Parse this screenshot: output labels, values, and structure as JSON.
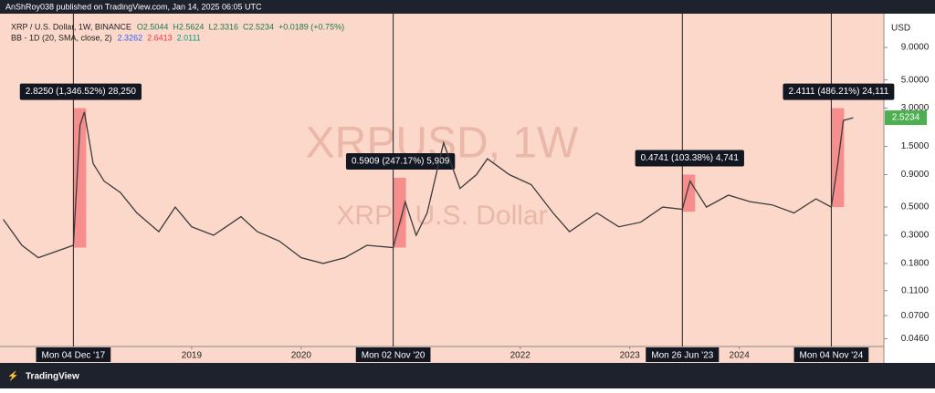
{
  "header": {
    "published": "AnShRoy038 published on TradingView.com, Jan 14, 2025 06:05 UTC"
  },
  "footer": {
    "brand": "TradingView"
  },
  "chart_data": {
    "type": "line",
    "title": "XRP / U.S. Dollar, 1W, BINANCE",
    "ohlc": [
      "O2.5044",
      "H2.5624",
      "L2.3316",
      "C2.5234",
      "+0.0189 (+0.75%)"
    ],
    "indicator": "BB - 1D (20, SMA, close, 2)",
    "indicator_values": [
      "2.3262",
      "2.6413",
      "2.0111"
    ],
    "watermark": "XRPUSD, 1W",
    "watermark_sub": "XRP / U.S. Dollar",
    "currency": "USD",
    "color": "#3b3b3b",
    "log_scale": true,
    "x": [
      2017.28,
      2017.45,
      2017.6,
      2017.8,
      2017.92,
      2017.98,
      2018.02,
      2018.1,
      2018.2,
      2018.35,
      2018.5,
      2018.7,
      2018.85,
      2019.0,
      2019.2,
      2019.45,
      2019.6,
      2019.8,
      2020.0,
      2020.2,
      2020.4,
      2020.6,
      2020.84,
      2020.95,
      2021.05,
      2021.15,
      2021.3,
      2021.45,
      2021.6,
      2021.7,
      2021.9,
      2022.1,
      2022.3,
      2022.45,
      2022.7,
      2022.9,
      2023.1,
      2023.3,
      2023.48,
      2023.55,
      2023.7,
      2023.9,
      2024.1,
      2024.3,
      2024.5,
      2024.7,
      2024.84,
      2024.9,
      2024.95,
      2025.04
    ],
    "values": [
      0.4,
      0.25,
      0.2,
      0.23,
      0.25,
      2.2,
      2.8,
      1.1,
      0.8,
      0.65,
      0.45,
      0.32,
      0.5,
      0.35,
      0.3,
      0.42,
      0.32,
      0.27,
      0.2,
      0.18,
      0.2,
      0.25,
      0.24,
      0.55,
      0.3,
      0.45,
      1.6,
      0.7,
      0.9,
      1.2,
      0.9,
      0.75,
      0.45,
      0.32,
      0.45,
      0.35,
      0.38,
      0.5,
      0.48,
      0.8,
      0.5,
      0.62,
      0.55,
      0.52,
      0.45,
      0.58,
      0.5,
      1.1,
      2.4,
      2.5234
    ],
    "last_price": 2.5234,
    "xlim": [
      2017.25,
      2025.32
    ],
    "xticks": [
      2019,
      2020,
      2022,
      2023,
      2024
    ],
    "ylim": [
      0.04,
      16.6
    ],
    "yticks": [
      {
        "value": 9,
        "label": "9.0000"
      },
      {
        "value": 5,
        "label": "5.0000"
      },
      {
        "value": 3,
        "label": "3.0000"
      },
      {
        "value": 1.5,
        "label": "1.5000"
      },
      {
        "value": 0.9,
        "label": "0.9000"
      },
      {
        "value": 0.5,
        "label": "0.5000"
      },
      {
        "value": 0.3,
        "label": "0.3000"
      },
      {
        "value": 0.18,
        "label": "0.1800"
      },
      {
        "value": 0.11,
        "label": "0.1100"
      },
      {
        "value": 0.07,
        "label": "0.0700"
      },
      {
        "value": 0.046,
        "label": "0.0460"
      }
    ],
    "markers": [
      {
        "x": 2017.92,
        "label": "Mon 04 Dec '17",
        "note": "2.8250 (1,346.52%) 28,250",
        "low": 0.24,
        "high": 3.0
      },
      {
        "x": 2020.84,
        "label": "Mon 02 Nov '20",
        "note": "0.5909 (247.17%) 5,909",
        "low": 0.24,
        "high": 0.85
      },
      {
        "x": 2023.48,
        "label": "Mon 26 Jun '23",
        "note": "0.4741 (103.38%) 4,741",
        "low": 0.46,
        "high": 0.9
      },
      {
        "x": 2024.84,
        "label": "Mon 04 Nov '24",
        "note": "2.4111 (486.21%) 24,111",
        "low": 0.5,
        "high": 3.0
      }
    ]
  }
}
